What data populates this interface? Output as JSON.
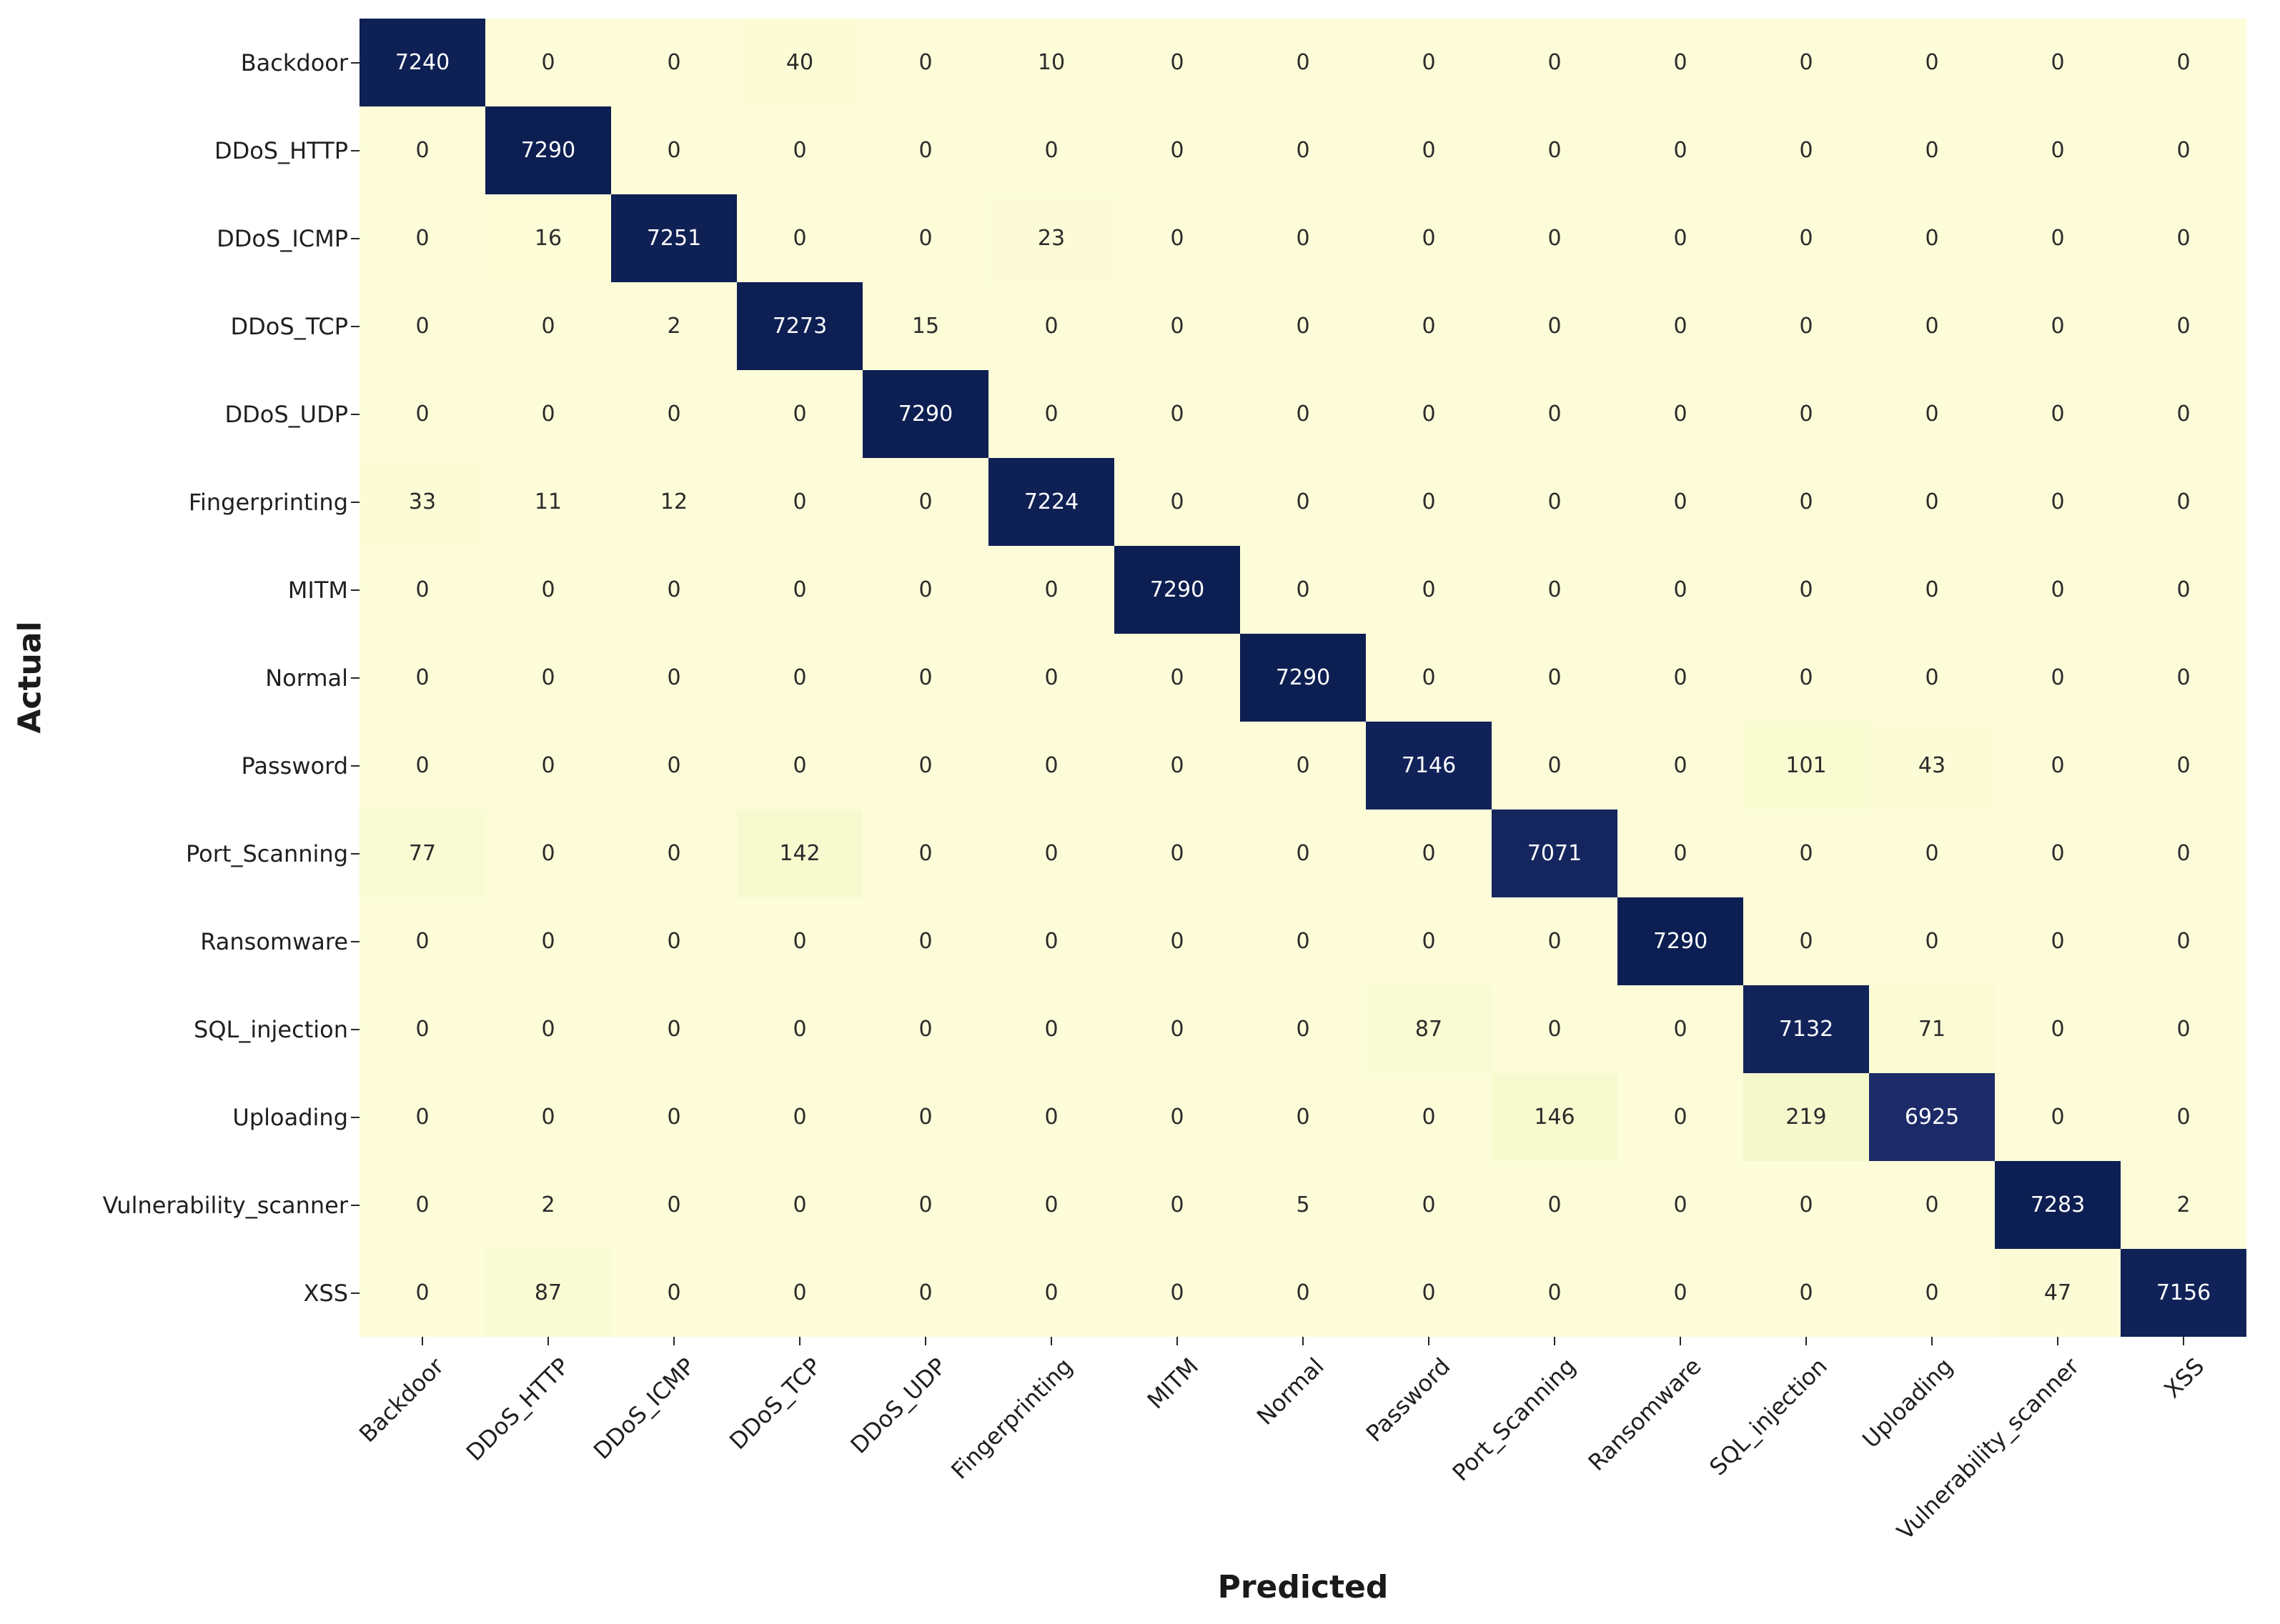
{
  "chart_data": {
    "type": "heatmap",
    "title": "",
    "xlabel": "Predicted",
    "ylabel": "Actual",
    "legend_position": "none",
    "grid": false,
    "vmin": 0,
    "vmax": 7290,
    "colormap": {
      "low": "#fcfcd9",
      "high": "#0d1f52",
      "stops": [
        [
          0.0,
          [
            252,
            252,
            217
          ]
        ],
        [
          0.0055,
          [
            251,
            252,
            213
          ]
        ],
        [
          0.012,
          [
            249,
            251,
            210
          ]
        ],
        [
          0.02,
          [
            247,
            250,
            207
          ]
        ],
        [
          0.031,
          [
            244,
            248,
            203
          ]
        ],
        [
          0.95,
          [
            28,
            43,
            104
          ]
        ],
        [
          0.97,
          [
            21,
            38,
            94
          ]
        ],
        [
          0.9805,
          [
            17,
            34,
            89
          ]
        ],
        [
          1.0,
          [
            13,
            31,
            82
          ]
        ]
      ]
    },
    "annotation_colors": {
      "on_dark": "#ffffff",
      "on_light": "#2b2b2b"
    },
    "classes": [
      "Backdoor",
      "DDoS_HTTP",
      "DDoS_ICMP",
      "DDoS_TCP",
      "DDoS_UDP",
      "Fingerprinting",
      "MITM",
      "Normal",
      "Password",
      "Port_Scanning",
      "Ransomware",
      "SQL_injection",
      "Uploading",
      "Vulnerability_scanner",
      "XSS"
    ],
    "matrix": [
      [
        7240,
        0,
        0,
        40,
        0,
        10,
        0,
        0,
        0,
        0,
        0,
        0,
        0,
        0,
        0
      ],
      [
        0,
        7290,
        0,
        0,
        0,
        0,
        0,
        0,
        0,
        0,
        0,
        0,
        0,
        0,
        0
      ],
      [
        0,
        16,
        7251,
        0,
        0,
        23,
        0,
        0,
        0,
        0,
        0,
        0,
        0,
        0,
        0
      ],
      [
        0,
        0,
        2,
        7273,
        15,
        0,
        0,
        0,
        0,
        0,
        0,
        0,
        0,
        0,
        0
      ],
      [
        0,
        0,
        0,
        0,
        7290,
        0,
        0,
        0,
        0,
        0,
        0,
        0,
        0,
        0,
        0
      ],
      [
        33,
        11,
        12,
        0,
        0,
        7224,
        0,
        0,
        0,
        0,
        0,
        0,
        0,
        0,
        0
      ],
      [
        0,
        0,
        0,
        0,
        0,
        0,
        7290,
        0,
        0,
        0,
        0,
        0,
        0,
        0,
        0
      ],
      [
        0,
        0,
        0,
        0,
        0,
        0,
        0,
        7290,
        0,
        0,
        0,
        0,
        0,
        0,
        0
      ],
      [
        0,
        0,
        0,
        0,
        0,
        0,
        0,
        0,
        7146,
        0,
        0,
        101,
        43,
        0,
        0
      ],
      [
        77,
        0,
        0,
        142,
        0,
        0,
        0,
        0,
        0,
        7071,
        0,
        0,
        0,
        0,
        0
      ],
      [
        0,
        0,
        0,
        0,
        0,
        0,
        0,
        0,
        0,
        0,
        7290,
        0,
        0,
        0,
        0
      ],
      [
        0,
        0,
        0,
        0,
        0,
        0,
        0,
        0,
        87,
        0,
        0,
        7132,
        71,
        0,
        0
      ],
      [
        0,
        0,
        0,
        0,
        0,
        0,
        0,
        0,
        0,
        146,
        0,
        219,
        6925,
        0,
        0
      ],
      [
        0,
        2,
        0,
        0,
        0,
        0,
        0,
        5,
        0,
        0,
        0,
        0,
        0,
        7283,
        2
      ],
      [
        0,
        87,
        0,
        0,
        0,
        0,
        0,
        0,
        0,
        0,
        0,
        0,
        0,
        47,
        7156
      ]
    ]
  }
}
